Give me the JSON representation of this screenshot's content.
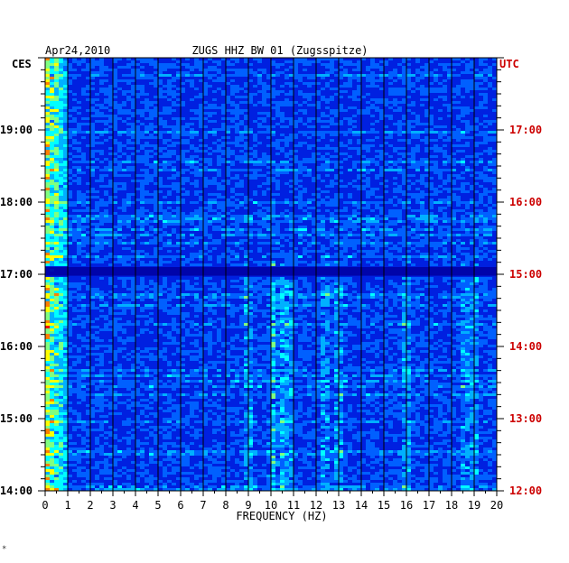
{
  "chart_data": {
    "type": "heatmap",
    "date": "Apr24,2010",
    "title": "ZUGS HHZ BW 01 (Zugsspitze)",
    "xlabel": "FREQUENCY (HZ)",
    "left_axis_label": "CES",
    "right_axis_label": "UTC",
    "xlim": [
      0,
      20
    ],
    "x_ticks": [
      "0",
      "1",
      "2",
      "3",
      "4",
      "5",
      "6",
      "7",
      "8",
      "9",
      "10",
      "11",
      "12",
      "13",
      "14",
      "15",
      "16",
      "17",
      "18",
      "19",
      "20"
    ],
    "left_time_range": [
      "14:00",
      "20:00"
    ],
    "left_ticks": [
      {
        "hour": 19,
        "label": "19:00"
      },
      {
        "hour": 18,
        "label": "18:00"
      },
      {
        "hour": 17,
        "label": "17:00"
      },
      {
        "hour": 16,
        "label": "16:00"
      },
      {
        "hour": 15,
        "label": "15:00"
      },
      {
        "hour": 14,
        "label": "14:00"
      }
    ],
    "right_ticks": [
      {
        "hour": 19,
        "label": "17:00"
      },
      {
        "hour": 18,
        "label": "16:00"
      },
      {
        "hour": 17,
        "label": "15:00"
      },
      {
        "hour": 16,
        "label": "14:00"
      },
      {
        "hour": 15,
        "label": "13:00"
      },
      {
        "hour": 14,
        "label": "12:00"
      }
    ],
    "grid": true,
    "colormap": [
      "#0000a0",
      "#0020e0",
      "#0060ff",
      "#00b0ff",
      "#00ffff",
      "#80ff80",
      "#ffff00",
      "#ff8000",
      "#ff0000"
    ],
    "right_label_color": "#cc0000",
    "left_label_color": "#000000",
    "footer_mark": "*"
  }
}
